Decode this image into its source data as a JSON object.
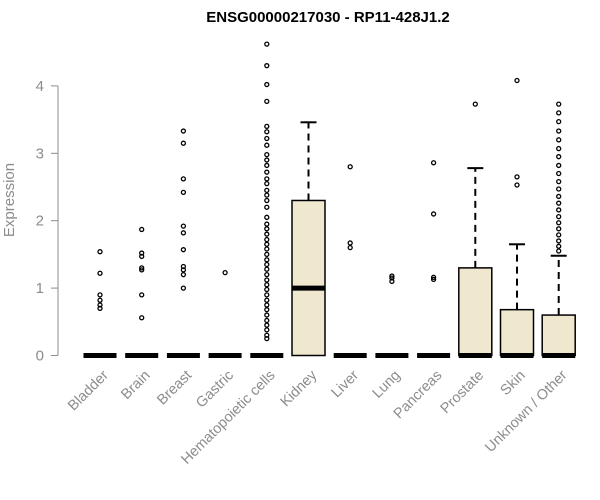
{
  "chart_data": {
    "type": "box",
    "title": "ENSG00000217030 - RP11-428J1.2",
    "ylabel": "Expression",
    "xlabel": "",
    "ylim": [
      0,
      4.7
    ],
    "yticks": [
      0,
      1,
      2,
      3,
      4
    ],
    "grid": false,
    "colors": {
      "box_fill": "#efe8cf",
      "box_stroke": "#000000",
      "axis": "#8c8c8c"
    },
    "categories": [
      "Bladder",
      "Brain",
      "Breast",
      "Gastric",
      "Hematopoietic cells",
      "Kidney",
      "Liver",
      "Lung",
      "Pancreas",
      "Prostate",
      "Skin",
      "Unknown / Other"
    ],
    "boxes": [
      {
        "category": "Bladder",
        "q1": 0,
        "median": 0,
        "q3": 0,
        "whisker_low": 0,
        "whisker_high": 0,
        "outliers": [
          1.54,
          1.22,
          0.9,
          0.82,
          0.75,
          0.7
        ]
      },
      {
        "category": "Brain",
        "q1": 0,
        "median": 0,
        "q3": 0,
        "whisker_low": 0,
        "whisker_high": 0,
        "outliers": [
          1.87,
          1.52,
          1.47,
          1.3,
          1.27,
          0.9,
          0.56
        ]
      },
      {
        "category": "Breast",
        "q1": 0,
        "median": 0,
        "q3": 0,
        "whisker_low": 0,
        "whisker_high": 0,
        "outliers": [
          3.33,
          3.15,
          2.62,
          2.42,
          1.92,
          1.82,
          1.57,
          1.32,
          1.27,
          1.2,
          1.0
        ]
      },
      {
        "category": "Gastric",
        "q1": 0,
        "median": 0,
        "q3": 0,
        "whisker_low": 0,
        "whisker_high": 0,
        "outliers": [
          1.23
        ]
      },
      {
        "category": "Hematopoietic cells",
        "q1": 0,
        "median": 0,
        "q3": 0,
        "whisker_low": 0,
        "whisker_high": 0,
        "outliers": [
          4.62,
          4.3,
          4.02,
          3.77,
          3.4,
          3.32,
          3.22,
          3.12,
          2.98,
          2.9,
          2.82,
          2.72,
          2.62,
          2.55,
          2.45,
          2.38,
          2.3,
          2.2,
          2.05,
          1.95,
          1.88,
          1.8,
          1.72,
          1.65,
          1.58,
          1.5,
          1.42,
          1.35,
          1.28,
          1.2,
          1.12,
          1.05,
          0.98,
          0.9,
          0.82,
          0.75,
          0.68,
          0.6,
          0.52,
          0.45,
          0.38,
          0.3,
          0.25
        ]
      },
      {
        "category": "Kidney",
        "q1": 0,
        "median": 1.0,
        "q3": 2.3,
        "whisker_low": 0,
        "whisker_high": 3.46,
        "outliers": []
      },
      {
        "category": "Liver",
        "q1": 0,
        "median": 0,
        "q3": 0,
        "whisker_low": 0,
        "whisker_high": 0,
        "outliers": [
          2.8,
          1.67,
          1.6
        ]
      },
      {
        "category": "Lung",
        "q1": 0,
        "median": 0,
        "q3": 0,
        "whisker_low": 0,
        "whisker_high": 0,
        "outliers": [
          1.18,
          1.15,
          1.1
        ]
      },
      {
        "category": "Pancreas",
        "q1": 0,
        "median": 0,
        "q3": 0,
        "whisker_low": 0,
        "whisker_high": 0,
        "outliers": [
          2.86,
          2.1,
          1.16,
          1.13
        ]
      },
      {
        "category": "Prostate",
        "q1": 0,
        "median": 0,
        "q3": 1.3,
        "whisker_low": 0,
        "whisker_high": 2.78,
        "outliers": [
          3.73
        ]
      },
      {
        "category": "Skin",
        "q1": 0,
        "median": 0,
        "q3": 0.68,
        "whisker_low": 0,
        "whisker_high": 1.65,
        "outliers": [
          4.08,
          2.65,
          2.53
        ]
      },
      {
        "category": "Unknown / Other",
        "q1": 0,
        "median": 0,
        "q3": 0.6,
        "whisker_low": 0,
        "whisker_high": 1.48,
        "outliers": [
          3.73,
          3.6,
          3.47,
          3.33,
          3.2,
          3.07,
          2.95,
          2.82,
          2.7,
          2.58,
          2.47,
          2.36,
          2.26,
          2.16,
          2.06,
          1.97,
          1.88,
          1.79,
          1.7,
          1.62,
          1.55
        ]
      }
    ]
  }
}
